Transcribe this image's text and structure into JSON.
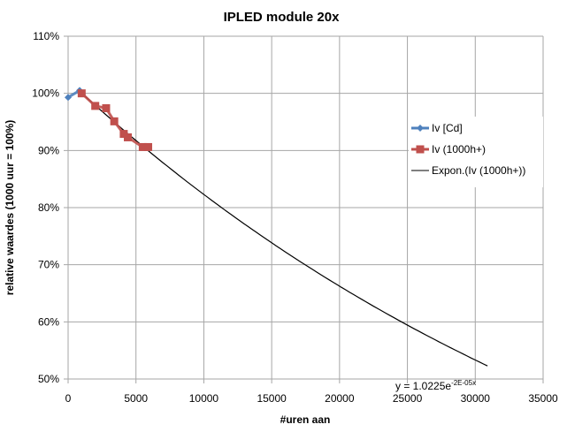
{
  "chart_data": {
    "type": "scatter",
    "title": "IPLED module 20x",
    "xlabel": "#uren aan",
    "ylabel": "relative waardes (1000 uur = 100%)",
    "xlim": [
      0,
      35000
    ],
    "ylim": [
      50,
      110
    ],
    "x_ticks": [
      "0",
      "5000",
      "10000",
      "15000",
      "20000",
      "25000",
      "30000",
      "35000"
    ],
    "y_ticks": [
      "50%",
      "60%",
      "70%",
      "80%",
      "90%",
      "100%",
      "110%"
    ],
    "grid": true,
    "legend_position": "right",
    "series": [
      {
        "name": "Iv [Cd]",
        "color": "#4f81bd",
        "marker": "diamond",
        "x": [
          0,
          850
        ],
        "y": [
          99.3,
          100.5
        ]
      },
      {
        "name": "Iv (1000h+)",
        "color": "#c0504d",
        "marker": "square",
        "x": [
          1000,
          2000,
          2800,
          3400,
          4100,
          4400,
          5500,
          5900
        ],
        "y": [
          100.0,
          97.8,
          97.4,
          95.1,
          92.9,
          92.3,
          90.6,
          90.6
        ]
      }
    ],
    "trendline": {
      "name": "Expon.(Iv (1000h+))",
      "color": "#000000",
      "type": "exponential",
      "a": 1.0225,
      "b": -2.17e-05,
      "x_range": [
        1000,
        30900
      ],
      "equation_label": "y = 1.0225e",
      "equation_exponent": "-2E-05x"
    }
  }
}
